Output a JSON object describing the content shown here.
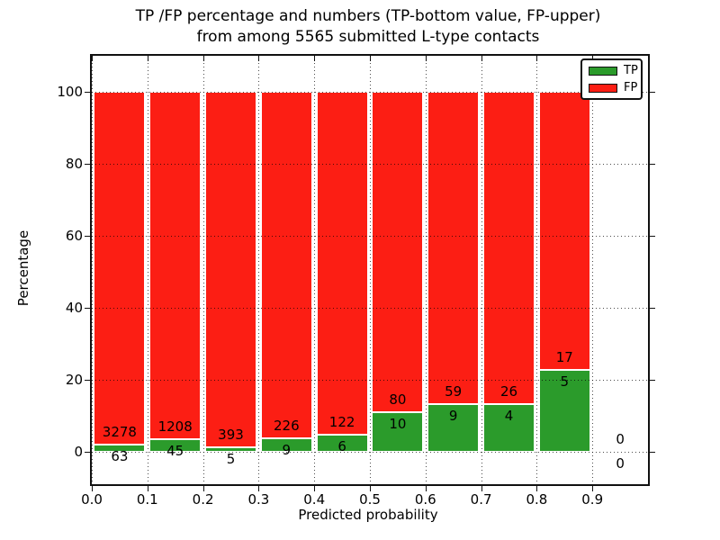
{
  "title": {
    "line1": "TP /FP percentage and numbers (TP-bottom value, FP-upper)",
    "line2": "from among 5565 submitted L-type contacts"
  },
  "axes": {
    "xlabel": "Predicted probability",
    "ylabel": "Percentage",
    "xtick_labels": [
      "0.0",
      "0.1",
      "0.2",
      "0.3",
      "0.4",
      "0.5",
      "0.6",
      "0.7",
      "0.8",
      "0.9"
    ],
    "ytick_labels": [
      "0",
      "20",
      "40",
      "60",
      "80",
      "100"
    ],
    "grid_style": "dotted"
  },
  "legend": {
    "position": "upper-right",
    "items": [
      {
        "label": "TP",
        "color": "#2b9b2b"
      },
      {
        "label": "FP",
        "color": "#fc1e14"
      }
    ]
  },
  "chart_data": {
    "type": "bar",
    "stacked": true,
    "title": "TP /FP percentage and numbers (TP-bottom value, FP-upper) from among 5565 submitted L-type contacts",
    "xlabel": "Predicted probability",
    "ylabel": "Percentage",
    "xlim": [
      0.0,
      1.0
    ],
    "ylim": [
      -9,
      110
    ],
    "xticks": [
      0.0,
      0.1,
      0.2,
      0.3,
      0.4,
      0.5,
      0.6,
      0.7,
      0.8,
      0.9
    ],
    "yticks": [
      0,
      20,
      40,
      60,
      80,
      100
    ],
    "bin_width": 0.1,
    "bar_width_fraction": 0.92,
    "grid": "on",
    "legend_position": "upper-right",
    "total_submitted": 5565,
    "bins": [
      "0.0-0.1",
      "0.1-0.2",
      "0.2-0.3",
      "0.3-0.4",
      "0.4-0.5",
      "0.5-0.6",
      "0.6-0.7",
      "0.7-0.8",
      "0.8-0.9",
      "0.9-1.0"
    ],
    "series": [
      {
        "name": "TP",
        "color": "#2b9b2b",
        "counts": [
          63,
          45,
          5,
          9,
          6,
          10,
          9,
          4,
          5,
          0
        ],
        "percent": [
          1.89,
          3.59,
          1.26,
          3.83,
          4.69,
          11.11,
          13.24,
          13.33,
          22.73,
          0
        ]
      },
      {
        "name": "FP",
        "color": "#fc1e14",
        "counts": [
          3278,
          1208,
          393,
          226,
          122,
          80,
          59,
          26,
          17,
          0
        ],
        "percent": [
          98.11,
          96.41,
          98.74,
          96.17,
          95.31,
          88.89,
          86.76,
          86.67,
          77.27,
          0
        ]
      }
    ]
  }
}
